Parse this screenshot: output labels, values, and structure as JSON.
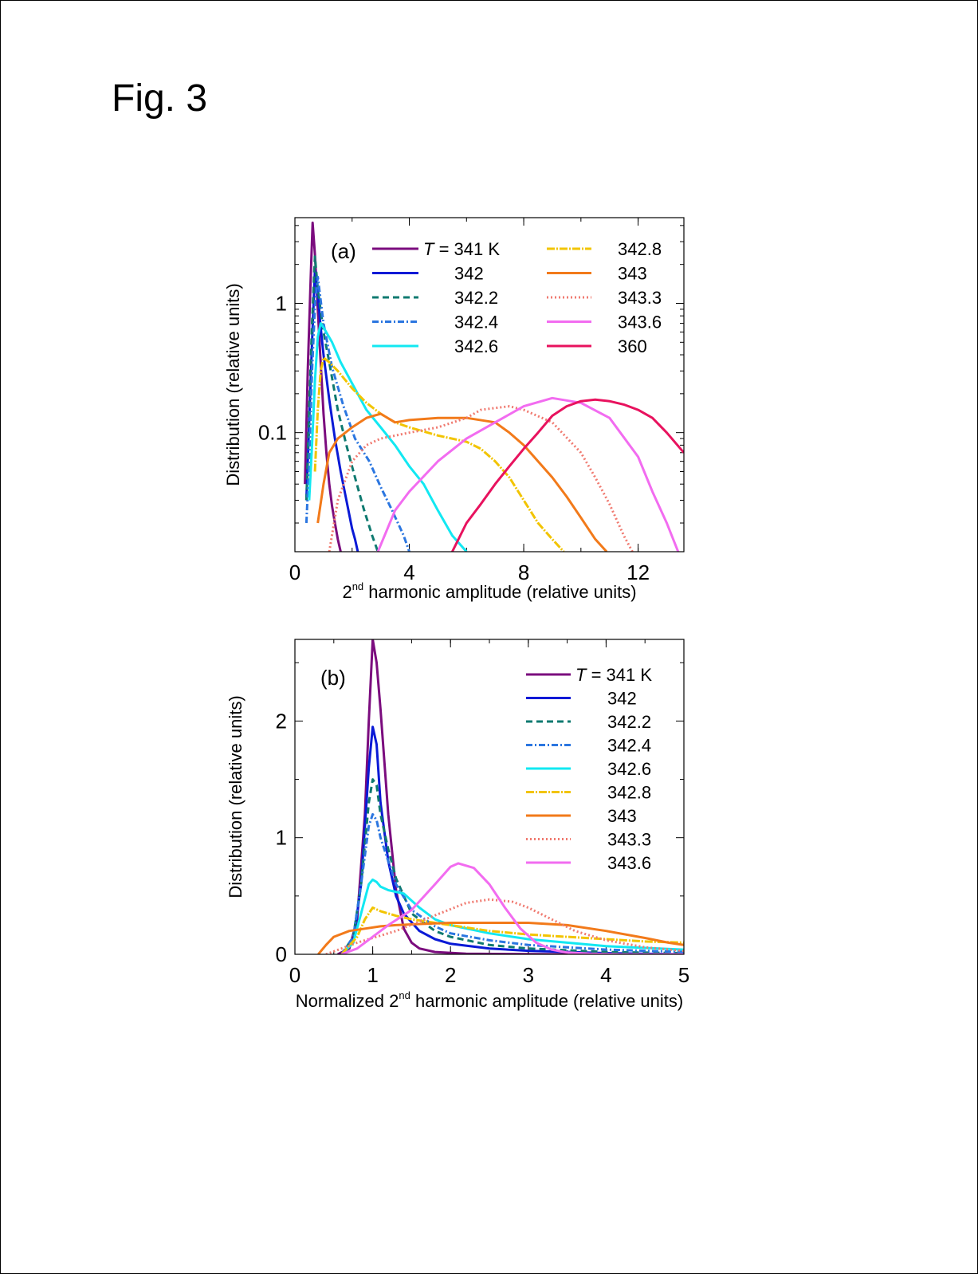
{
  "figure_label": "Fig. 3",
  "chart_data": [
    {
      "id": "a",
      "type": "line",
      "panel_label": "(a)",
      "xscale": "linear",
      "yscale": "log",
      "xlim": [
        0,
        13.6
      ],
      "ylim": [
        0.012,
        4.6
      ],
      "xticks": [
        0,
        4,
        8,
        12
      ],
      "xtick_labels": [
        "0",
        "4",
        "8",
        "12"
      ],
      "yticks": [
        0.1,
        1
      ],
      "ytick_labels": [
        "0.1",
        "1"
      ],
      "xlabel_prefix": "2",
      "xlabel_sup": "nd",
      "xlabel_suffix": " harmonic amplitude (relative units)",
      "ylabel": "Distribution (relative units)",
      "legend_first_italic": "T",
      "legend_first_rest": " = 341 K",
      "series": [
        {
          "name": "341",
          "label": "",
          "color": "#7b0c7e",
          "dash": "",
          "width": 3,
          "x": [
            0.35,
            0.45,
            0.55,
            0.62,
            0.7,
            0.8,
            0.9,
            1.0,
            1.1,
            1.2,
            1.3,
            1.4,
            1.5,
            1.6
          ],
          "y": [
            0.04,
            0.3,
            1.5,
            4.2,
            2.4,
            0.9,
            0.35,
            0.14,
            0.07,
            0.04,
            0.027,
            0.02,
            0.015,
            0.012
          ]
        },
        {
          "name": "342",
          "label": "342",
          "color": "#0a1ad6",
          "dash": "",
          "width": 3,
          "x": [
            0.4,
            0.5,
            0.6,
            0.7,
            0.8,
            0.9,
            1.0,
            1.2,
            1.4,
            1.6,
            1.8,
            2.0,
            2.1,
            2.2
          ],
          "y": [
            0.03,
            0.12,
            0.5,
            1.8,
            1.2,
            0.65,
            0.4,
            0.18,
            0.09,
            0.05,
            0.03,
            0.018,
            0.015,
            0.012
          ]
        },
        {
          "name": "342.2",
          "label": "342.2",
          "color": "#0f7a70",
          "dash": "8,5",
          "width": 3,
          "x": [
            0.4,
            0.5,
            0.6,
            0.7,
            0.8,
            1.0,
            1.2,
            1.5,
            1.8,
            2.1,
            2.4,
            2.7,
            2.9
          ],
          "y": [
            0.03,
            0.15,
            0.7,
            2.3,
            1.3,
            0.6,
            0.35,
            0.15,
            0.08,
            0.045,
            0.026,
            0.016,
            0.012
          ]
        },
        {
          "name": "342.4",
          "label": "342.4",
          "color": "#2b76e0",
          "dash": "8,3,2,3",
          "width": 3,
          "x": [
            0.4,
            0.5,
            0.6,
            0.7,
            0.8,
            1.0,
            1.3,
            1.7,
            2.1,
            2.6,
            3.0,
            3.4,
            3.8,
            4.0
          ],
          "y": [
            0.02,
            0.06,
            0.3,
            0.95,
            1.6,
            0.7,
            0.32,
            0.16,
            0.09,
            0.06,
            0.038,
            0.025,
            0.016,
            0.012
          ]
        },
        {
          "name": "342.6",
          "label": "342.6",
          "color": "#12e8f2",
          "dash": "",
          "width": 3,
          "x": [
            0.5,
            0.6,
            0.7,
            0.8,
            0.9,
            1.0,
            1.3,
            1.6,
            2.0,
            2.5,
            3.0,
            3.5,
            4.0,
            4.5,
            5.0,
            5.5,
            6.0
          ],
          "y": [
            0.03,
            0.08,
            0.25,
            0.55,
            0.7,
            0.65,
            0.5,
            0.35,
            0.24,
            0.15,
            0.11,
            0.08,
            0.055,
            0.04,
            0.025,
            0.016,
            0.012
          ]
        },
        {
          "name": "342.8",
          "label": "342.8",
          "color": "#f2c400",
          "dash": "10,2,2,2",
          "width": 3,
          "x": [
            0.7,
            0.8,
            0.9,
            1.0,
            1.2,
            1.5,
            2.0,
            2.5,
            3.0,
            3.5,
            4.0,
            5.0,
            6.0,
            6.5,
            7.0,
            7.5,
            8.0,
            8.5,
            9.0,
            9.4
          ],
          "y": [
            0.05,
            0.15,
            0.3,
            0.38,
            0.35,
            0.3,
            0.22,
            0.17,
            0.14,
            0.12,
            0.11,
            0.095,
            0.085,
            0.075,
            0.06,
            0.045,
            0.03,
            0.02,
            0.015,
            0.012
          ]
        },
        {
          "name": "343",
          "label": "343",
          "color": "#f27a1a",
          "dash": "",
          "width": 3,
          "x": [
            0.8,
            1.0,
            1.2,
            1.5,
            2.0,
            2.5,
            3.0,
            3.5,
            4.0,
            5.0,
            6.0,
            7.0,
            7.5,
            8.0,
            8.5,
            9.0,
            9.5,
            10.0,
            10.5,
            10.9
          ],
          "y": [
            0.02,
            0.04,
            0.07,
            0.09,
            0.11,
            0.13,
            0.14,
            0.12,
            0.125,
            0.13,
            0.13,
            0.12,
            0.1,
            0.08,
            0.06,
            0.045,
            0.032,
            0.022,
            0.015,
            0.012
          ]
        },
        {
          "name": "343.3",
          "label": "343.3",
          "color": "#f07a70",
          "dash": "2,3",
          "width": 3,
          "x": [
            1.2,
            1.5,
            2.0,
            2.5,
            3.0,
            4.0,
            5.0,
            6.0,
            6.5,
            7.0,
            7.5,
            8.0,
            9.0,
            10.0,
            10.5,
            11.0,
            11.5,
            11.8
          ],
          "y": [
            0.012,
            0.03,
            0.06,
            0.08,
            0.09,
            0.1,
            0.11,
            0.13,
            0.15,
            0.155,
            0.16,
            0.15,
            0.12,
            0.07,
            0.045,
            0.028,
            0.016,
            0.012
          ]
        },
        {
          "name": "343.6",
          "label": "343.6",
          "color": "#f26cf0",
          "dash": "",
          "width": 3,
          "x": [
            2.9,
            3.5,
            4.0,
            5.0,
            6.0,
            7.0,
            8.0,
            9.0,
            10.0,
            11.0,
            12.0,
            12.5,
            13.0,
            13.4
          ],
          "y": [
            0.012,
            0.025,
            0.035,
            0.06,
            0.09,
            0.12,
            0.16,
            0.185,
            0.17,
            0.13,
            0.065,
            0.035,
            0.02,
            0.012
          ]
        },
        {
          "name": "360",
          "label": "360",
          "color": "#e8125e",
          "dash": "",
          "width": 3,
          "x": [
            5.5,
            6.0,
            6.5,
            7.0,
            7.5,
            8.0,
            8.5,
            9.0,
            9.5,
            10.0,
            10.5,
            11.0,
            11.5,
            12.0,
            12.5,
            13.0,
            13.6
          ],
          "y": [
            0.012,
            0.02,
            0.028,
            0.04,
            0.055,
            0.075,
            0.1,
            0.135,
            0.16,
            0.175,
            0.18,
            0.175,
            0.165,
            0.15,
            0.13,
            0.1,
            0.07
          ]
        }
      ]
    },
    {
      "id": "b",
      "type": "line",
      "panel_label": "(b)",
      "xscale": "linear",
      "yscale": "linear",
      "xlim": [
        0,
        5
      ],
      "ylim": [
        0,
        2.7
      ],
      "xticks": [
        0,
        1,
        2,
        3,
        4,
        5
      ],
      "xtick_labels": [
        "0",
        "1",
        "2",
        "3",
        "4",
        "5"
      ],
      "yticks": [
        0,
        1,
        2
      ],
      "ytick_labels": [
        "0",
        "1",
        "2"
      ],
      "xlabel_prefix": "Normalized 2",
      "xlabel_sup": "nd",
      "xlabel_suffix": " harmonic amplitude (relative units)",
      "ylabel": "Distribution (relative units)",
      "legend_first_italic": "T",
      "legend_first_rest": " = 341 K",
      "series": [
        {
          "name": "341",
          "label": "",
          "color": "#7b0c7e",
          "dash": "",
          "width": 3,
          "x": [
            0.55,
            0.7,
            0.8,
            0.9,
            0.95,
            1.0,
            1.05,
            1.1,
            1.2,
            1.3,
            1.4,
            1.5,
            1.6,
            1.8,
            2.2,
            3.5
          ],
          "y": [
            0,
            0.05,
            0.3,
            1.2,
            2.0,
            2.7,
            2.5,
            2.1,
            1.2,
            0.55,
            0.22,
            0.1,
            0.05,
            0.02,
            0.005,
            0
          ]
        },
        {
          "name": "342",
          "label": "342",
          "color": "#0a1ad6",
          "dash": "",
          "width": 3,
          "x": [
            0.6,
            0.75,
            0.85,
            0.95,
            1.0,
            1.05,
            1.1,
            1.2,
            1.3,
            1.4,
            1.6,
            1.8,
            2.0,
            2.5,
            3.0,
            4.0,
            5.0
          ],
          "y": [
            0,
            0.1,
            0.6,
            1.6,
            1.95,
            1.8,
            1.3,
            0.8,
            0.5,
            0.35,
            0.2,
            0.13,
            0.09,
            0.05,
            0.03,
            0.01,
            0
          ]
        },
        {
          "name": "342.2",
          "label": "342.2",
          "color": "#0f7a70",
          "dash": "8,5",
          "width": 3,
          "x": [
            0.6,
            0.75,
            0.85,
            0.95,
            1.0,
            1.05,
            1.1,
            1.2,
            1.3,
            1.5,
            1.8,
            2.0,
            2.5,
            3.0,
            4.0,
            5.0
          ],
          "y": [
            0,
            0.15,
            0.6,
            1.3,
            1.5,
            1.45,
            1.2,
            0.9,
            0.65,
            0.35,
            0.2,
            0.15,
            0.08,
            0.05,
            0.02,
            0.01
          ]
        },
        {
          "name": "342.4",
          "label": "342.4",
          "color": "#2b76e0",
          "dash": "8,3,2,3",
          "width": 3,
          "x": [
            0.6,
            0.75,
            0.85,
            0.95,
            1.0,
            1.05,
            1.1,
            1.2,
            1.3,
            1.5,
            1.8,
            2.0,
            2.5,
            3.0,
            4.0,
            5.0
          ],
          "y": [
            0,
            0.15,
            0.6,
            1.1,
            1.2,
            1.15,
            1.0,
            0.8,
            0.6,
            0.38,
            0.24,
            0.18,
            0.12,
            0.08,
            0.04,
            0.02
          ]
        },
        {
          "name": "342.6",
          "label": "342.6",
          "color": "#12e8f2",
          "dash": "",
          "width": 3,
          "x": [
            0.6,
            0.75,
            0.85,
            0.95,
            1.0,
            1.05,
            1.1,
            1.2,
            1.4,
            1.6,
            1.8,
            2.0,
            2.5,
            3.0,
            3.5,
            4.0,
            5.0
          ],
          "y": [
            0,
            0.1,
            0.35,
            0.6,
            0.64,
            0.62,
            0.58,
            0.55,
            0.52,
            0.4,
            0.3,
            0.25,
            0.18,
            0.13,
            0.1,
            0.07,
            0.04
          ]
        },
        {
          "name": "342.8",
          "label": "342.8",
          "color": "#f2c400",
          "dash": "10,2,2,2",
          "width": 3,
          "x": [
            0.6,
            0.8,
            0.9,
            1.0,
            1.1,
            1.3,
            1.5,
            1.8,
            2.0,
            2.5,
            3.0,
            3.5,
            4.0,
            4.5,
            5.0
          ],
          "y": [
            0,
            0.15,
            0.3,
            0.4,
            0.37,
            0.33,
            0.3,
            0.27,
            0.25,
            0.2,
            0.17,
            0.15,
            0.13,
            0.11,
            0.1
          ]
        },
        {
          "name": "343",
          "label": "343",
          "color": "#f27a1a",
          "dash": "",
          "width": 3,
          "x": [
            0.3,
            0.4,
            0.5,
            0.7,
            0.9,
            1.1,
            1.3,
            1.6,
            2.0,
            2.5,
            3.0,
            3.5,
            4.0,
            4.5,
            4.8,
            5.0
          ],
          "y": [
            0,
            0.08,
            0.15,
            0.2,
            0.22,
            0.24,
            0.25,
            0.26,
            0.27,
            0.27,
            0.27,
            0.25,
            0.2,
            0.14,
            0.1,
            0.08
          ]
        },
        {
          "name": "343.3",
          "label": "343.3",
          "color": "#f07a70",
          "dash": "2,3",
          "width": 3,
          "x": [
            0.4,
            0.6,
            0.8,
            1.0,
            1.3,
            1.6,
            1.9,
            2.2,
            2.5,
            2.8,
            3.0,
            3.3,
            3.6,
            4.0,
            4.5,
            5.0
          ],
          "y": [
            0,
            0.05,
            0.1,
            0.14,
            0.2,
            0.28,
            0.36,
            0.44,
            0.47,
            0.45,
            0.4,
            0.3,
            0.2,
            0.12,
            0.06,
            0.03
          ]
        },
        {
          "name": "343.6",
          "label": "343.6",
          "color": "#f26cf0",
          "dash": "",
          "width": 3,
          "x": [
            0.6,
            0.8,
            1.0,
            1.2,
            1.5,
            1.8,
            2.0,
            2.1,
            2.3,
            2.5,
            2.7,
            2.9,
            3.1,
            3.3,
            3.5,
            3.8,
            4.2,
            5.0
          ],
          "y": [
            0,
            0.05,
            0.15,
            0.25,
            0.38,
            0.6,
            0.75,
            0.78,
            0.74,
            0.6,
            0.4,
            0.22,
            0.1,
            0.04,
            0.015,
            0.005,
            0,
            0
          ]
        }
      ]
    }
  ]
}
